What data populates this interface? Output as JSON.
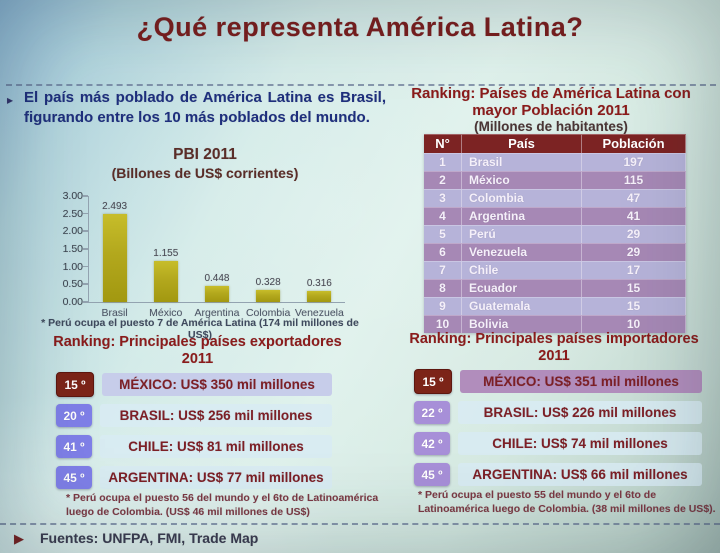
{
  "slide": {
    "title": "¿Qué representa América Latina?",
    "intro_text": "El país más poblado de América Latina es Brasil, figurando entre los 10 más poblados del mundo.",
    "sources_label": "Fuentes: UNFPA, FMI, Trade Map"
  },
  "colors": {
    "title_maroon": "#7a1d1d",
    "intro_navy": "#1e2f7d",
    "bar_olive": "#b3a81d",
    "table_header_maroon": "#7c2323",
    "row_light_purple": "#b6b3d9",
    "row_dark_purple": "#a688b5",
    "highlight_badge_maroon": "#7c2418",
    "exporter_badge_purple": "#7f7fe8",
    "importer_badge_purple": "#a78fd8",
    "exporter_highlight_bar": "#c7cdea",
    "importer_highlight_bar": "#b18dbc",
    "ranking_bar_light": "#d8ebf3",
    "ranking_text_maroon": "#7c1f26"
  },
  "chart_data": [
    {
      "type": "bar",
      "title": "PBI 2011",
      "subtitle": "(Billones de US$ corrientes)",
      "categories": [
        "Brasil",
        "México",
        "Argentina",
        "Colombia",
        "Venezuela"
      ],
      "values": [
        2.493,
        1.155,
        0.448,
        0.328,
        0.316
      ],
      "value_labels": [
        "2.493",
        "1.155",
        "0.448",
        "0.328",
        "0.316"
      ],
      "xlabel": "",
      "ylabel": "",
      "ylim": [
        0,
        3.0
      ],
      "yticks": [
        "3.00",
        "2.50",
        "2.00",
        "1.50",
        "1.00",
        "0.50",
        "0.00"
      ],
      "grid": false,
      "legend": false,
      "footnote": "* Perú ocupa el puesto 7 de América Latina (174 mil millones de US$)"
    },
    {
      "type": "table",
      "title": "Ranking: Países de América Latina con mayor Población 2011",
      "title_lines": [
        "Ranking: Países de América Latina con",
        "mayor Población 2011"
      ],
      "subtitle": "(Millones de habitantes)",
      "columns": [
        "N°",
        "País",
        "Población"
      ],
      "rows": [
        [
          "1",
          "Brasil",
          "197"
        ],
        [
          "2",
          "México",
          "115"
        ],
        [
          "3",
          "Colombia",
          "47"
        ],
        [
          "4",
          "Argentina",
          "41"
        ],
        [
          "5",
          "Perú",
          "29"
        ],
        [
          "6",
          "Venezuela",
          "29"
        ],
        [
          "7",
          "Chile",
          "17"
        ],
        [
          "8",
          "Ecuador",
          "15"
        ],
        [
          "9",
          "Guatemala",
          "15"
        ],
        [
          "10",
          "Bolivia",
          "10"
        ]
      ]
    },
    {
      "type": "table",
      "title": "Ranking: Principales países exportadores 2011",
      "title_lines": [
        "Ranking: Principales países exportadores",
        "2011"
      ],
      "rows": [
        {
          "rank": "15 º",
          "label": "MÉXICO: US$ 350 mil millones",
          "highlight": true
        },
        {
          "rank": "20 º",
          "label": "BRASIL: US$ 256 mil millones",
          "highlight": false
        },
        {
          "rank": "41 º",
          "label": "CHILE: US$ 81 mil millones",
          "highlight": false
        },
        {
          "rank": "45 º",
          "label": "ARGENTINA: US$ 77 mil millones",
          "highlight": false
        }
      ],
      "footnote": "* Perú ocupa el puesto 56 del mundo y el 6to de Latinoamérica luego de Colombia. (US$ 46 mil millones de US$)"
    },
    {
      "type": "table",
      "title": "Ranking: Principales países importadores 2011",
      "title_lines": [
        "Ranking: Principales países importadores",
        "2011"
      ],
      "rows": [
        {
          "rank": "15 º",
          "label": "MÉXICO: US$ 351 mil millones",
          "highlight": true
        },
        {
          "rank": "22 º",
          "label": "BRASIL: US$ 226 mil millones",
          "highlight": false
        },
        {
          "rank": "42 º",
          "label": "CHILE: US$ 74 mil millones",
          "highlight": false
        },
        {
          "rank": "45 º",
          "label": "ARGENTINA: US$ 66 mil millones",
          "highlight": false
        }
      ],
      "footnote": "* Perú ocupa el puesto 55 del mundo y el 6to de Latinoamérica luego de Colombia. (38 mil millones de US$)."
    }
  ]
}
